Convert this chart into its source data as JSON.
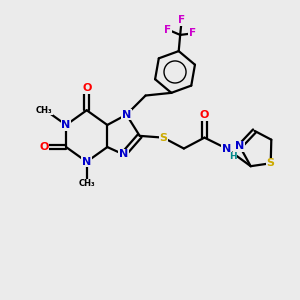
{
  "background_color": "#ebebeb",
  "atom_colors": {
    "C": "#000000",
    "N": "#0000cc",
    "O": "#ff0000",
    "S": "#ccaa00",
    "F": "#cc00cc",
    "H": "#008888"
  },
  "figsize": [
    3.0,
    3.0
  ],
  "dpi": 100
}
